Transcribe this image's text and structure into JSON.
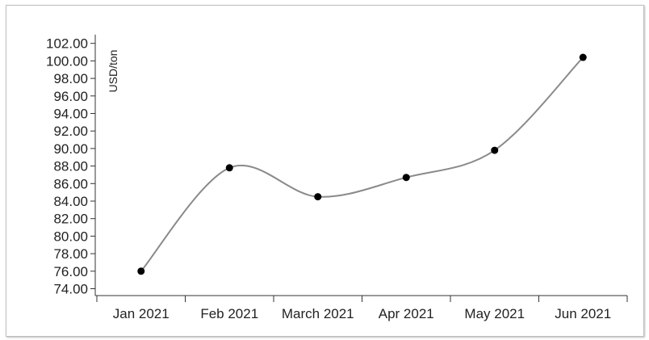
{
  "chart_data": {
    "type": "line",
    "title": "",
    "xlabel": "",
    "ylabel": "USD/ton",
    "categories": [
      "Jan 2021",
      "Feb 2021",
      "March 2021",
      "Apr 2021",
      "May 2021",
      "Jun 2021"
    ],
    "series": [
      {
        "values": [
          76.0,
          87.8,
          84.5,
          86.7,
          89.8,
          100.4
        ]
      }
    ],
    "ylim": [
      73.0,
      103.0
    ],
    "yticks": [
      "74.00",
      "76.00",
      "78.00",
      "80.00",
      "82.00",
      "84.00",
      "86.00",
      "88.00",
      "90.00",
      "92.00",
      "94.00",
      "96.00",
      "98.00",
      "100.00",
      "102.00"
    ],
    "grid": false,
    "legend": "none",
    "colors": {
      "line": "#8a8a8a",
      "point": "#000000",
      "axis": "#333333"
    }
  }
}
